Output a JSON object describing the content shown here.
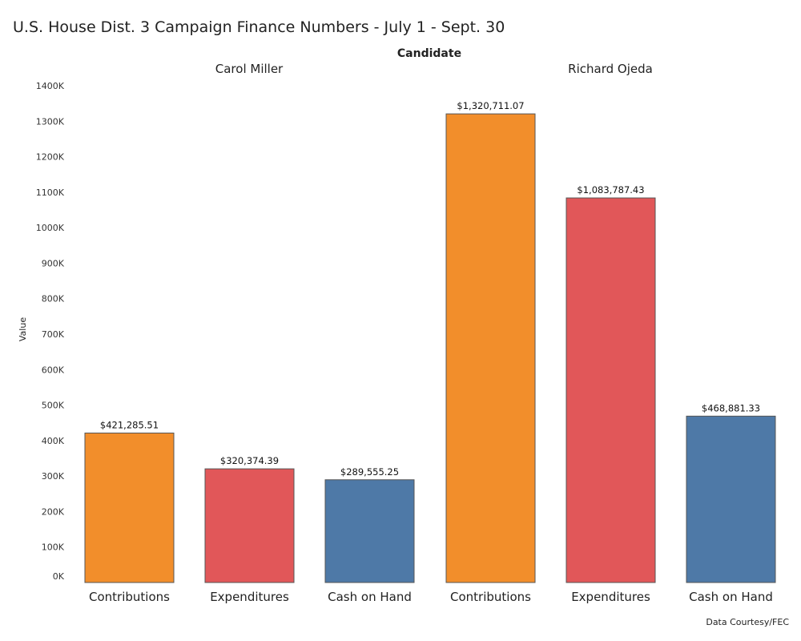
{
  "chart_data": {
    "type": "bar",
    "title": "U.S. House Dist. 3 Campaign Finance Numbers - July 1 - Sept. 30",
    "column_header": "Candidate",
    "ylabel": "Value",
    "ylim": [
      0,
      1400000
    ],
    "y_ticks": [
      {
        "value": 0,
        "label": "0K"
      },
      {
        "value": 100000,
        "label": "100K"
      },
      {
        "value": 200000,
        "label": "200K"
      },
      {
        "value": 300000,
        "label": "300K"
      },
      {
        "value": 400000,
        "label": "400K"
      },
      {
        "value": 500000,
        "label": "500K"
      },
      {
        "value": 600000,
        "label": "600K"
      },
      {
        "value": 700000,
        "label": "700K"
      },
      {
        "value": 800000,
        "label": "800K"
      },
      {
        "value": 900000,
        "label": "900K"
      },
      {
        "value": 1000000,
        "label": "1000K"
      },
      {
        "value": 1100000,
        "label": "1100K"
      },
      {
        "value": 1200000,
        "label": "1200K"
      },
      {
        "value": 1300000,
        "label": "1300K"
      },
      {
        "value": 1400000,
        "label": "1400K"
      }
    ],
    "groups": [
      {
        "name": "Carol Miller",
        "bars": [
          {
            "category": "Contributions",
            "value": 421285.51,
            "label": "$421,285.51",
            "color": "#F28E2B"
          },
          {
            "category": "Expenditures",
            "value": 320374.39,
            "label": "$320,374.39",
            "color": "#E15759"
          },
          {
            "category": "Cash on Hand",
            "value": 289555.25,
            "label": "$289,555.25",
            "color": "#4E79A7"
          }
        ]
      },
      {
        "name": "Richard Ojeda",
        "bars": [
          {
            "category": "Contributions",
            "value": 1320711.07,
            "label": "$1,320,711.07",
            "color": "#F28E2B"
          },
          {
            "category": "Expenditures",
            "value": 1083787.43,
            "label": "$1,083,787.43",
            "color": "#E15759"
          },
          {
            "category": "Cash on Hand",
            "value": 468881.33,
            "label": "$468,881.33",
            "color": "#4E79A7"
          }
        ]
      }
    ],
    "source_note": "Data Courtesy/FEC"
  }
}
